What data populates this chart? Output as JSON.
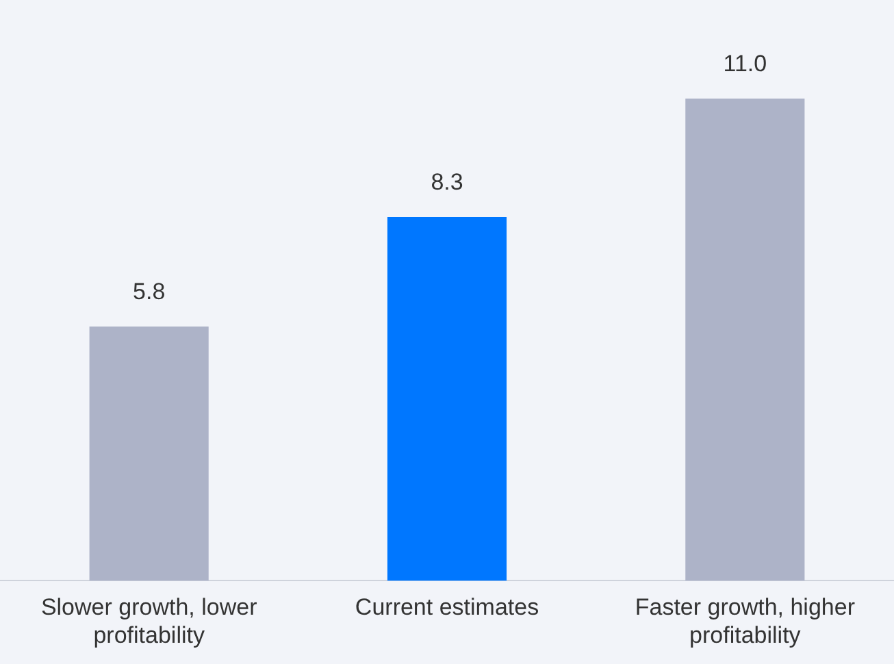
{
  "chart_data": {
    "type": "bar",
    "categories": [
      "Slower growth, lower profitability",
      "Current estimates",
      "Faster growth, higher profitability"
    ],
    "values": [
      5.8,
      8.3,
      11.0
    ],
    "colors": [
      "#adb3c8",
      "#0077ff",
      "#adb3c8"
    ],
    "value_labels": [
      "5.8",
      "8.3",
      "11.0"
    ],
    "grid": false,
    "legend": false
  }
}
